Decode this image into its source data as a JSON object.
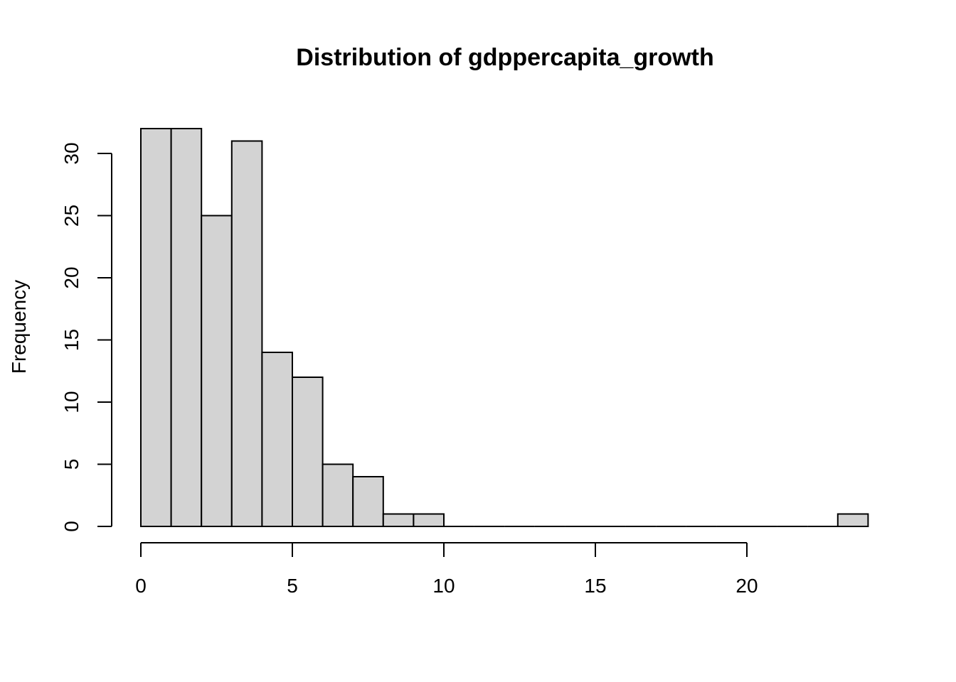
{
  "chart_data": {
    "type": "bar",
    "title": "Distribution of gdppercapita_growth",
    "xlabel": "",
    "ylabel": "Frequency",
    "bin_edges": [
      0,
      1,
      2,
      3,
      4,
      5,
      6,
      7,
      8,
      9,
      10,
      11,
      12,
      13,
      14,
      15,
      16,
      17,
      18,
      19,
      20,
      21,
      22,
      23,
      24
    ],
    "values": [
      32,
      32,
      25,
      31,
      14,
      12,
      5,
      4,
      1,
      1,
      0,
      0,
      0,
      0,
      0,
      0,
      0,
      0,
      0,
      0,
      0,
      0,
      0,
      1
    ],
    "xlim": [
      0,
      24
    ],
    "ylim": [
      0,
      32
    ],
    "x_ticks": [
      0,
      5,
      10,
      15,
      20
    ],
    "y_ticks": [
      0,
      5,
      10,
      15,
      20,
      25,
      30
    ],
    "grid": false,
    "bar_color": "#d3d3d3",
    "edge_color": "#000000"
  }
}
